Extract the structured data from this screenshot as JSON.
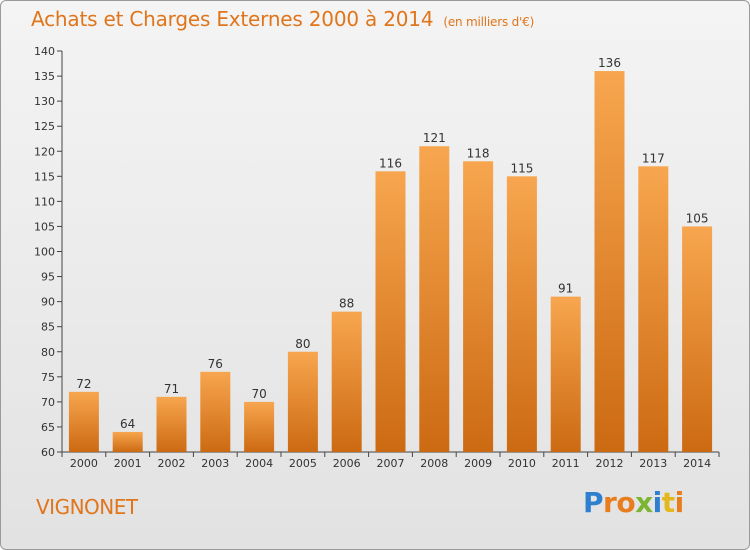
{
  "header": {
    "title": "Achats et Charges Externes 2000 à 2014",
    "unit": "(en milliers d'€)"
  },
  "footer": {
    "commune": "VIGNONET"
  },
  "logo": {
    "letters": [
      "P",
      "r",
      "o",
      "x",
      "i",
      "t",
      "i"
    ],
    "colors": [
      "#2f7fcf",
      "#e87d1e",
      "#e87d1e",
      "#7bb531",
      "#2f7fcf",
      "#e3b81f",
      "#e87d1e"
    ]
  },
  "chart_data": {
    "type": "bar",
    "title": "Achats et Charges Externes 2000 à 2014",
    "subtitle": "(en milliers d'€)",
    "categories": [
      "2000",
      "2001",
      "2002",
      "2003",
      "2004",
      "2005",
      "2006",
      "2007",
      "2008",
      "2009",
      "2010",
      "2011",
      "2012",
      "2013",
      "2014"
    ],
    "values": [
      72,
      64,
      71,
      76,
      70,
      80,
      88,
      116,
      121,
      118,
      115,
      91,
      136,
      117,
      105
    ],
    "ylim": [
      60,
      140
    ],
    "ytick_step": 5,
    "grid": false,
    "bar_color_top": "#f7a64f",
    "bar_color_bottom": "#cc6a12",
    "xlabel": "",
    "ylabel": ""
  }
}
